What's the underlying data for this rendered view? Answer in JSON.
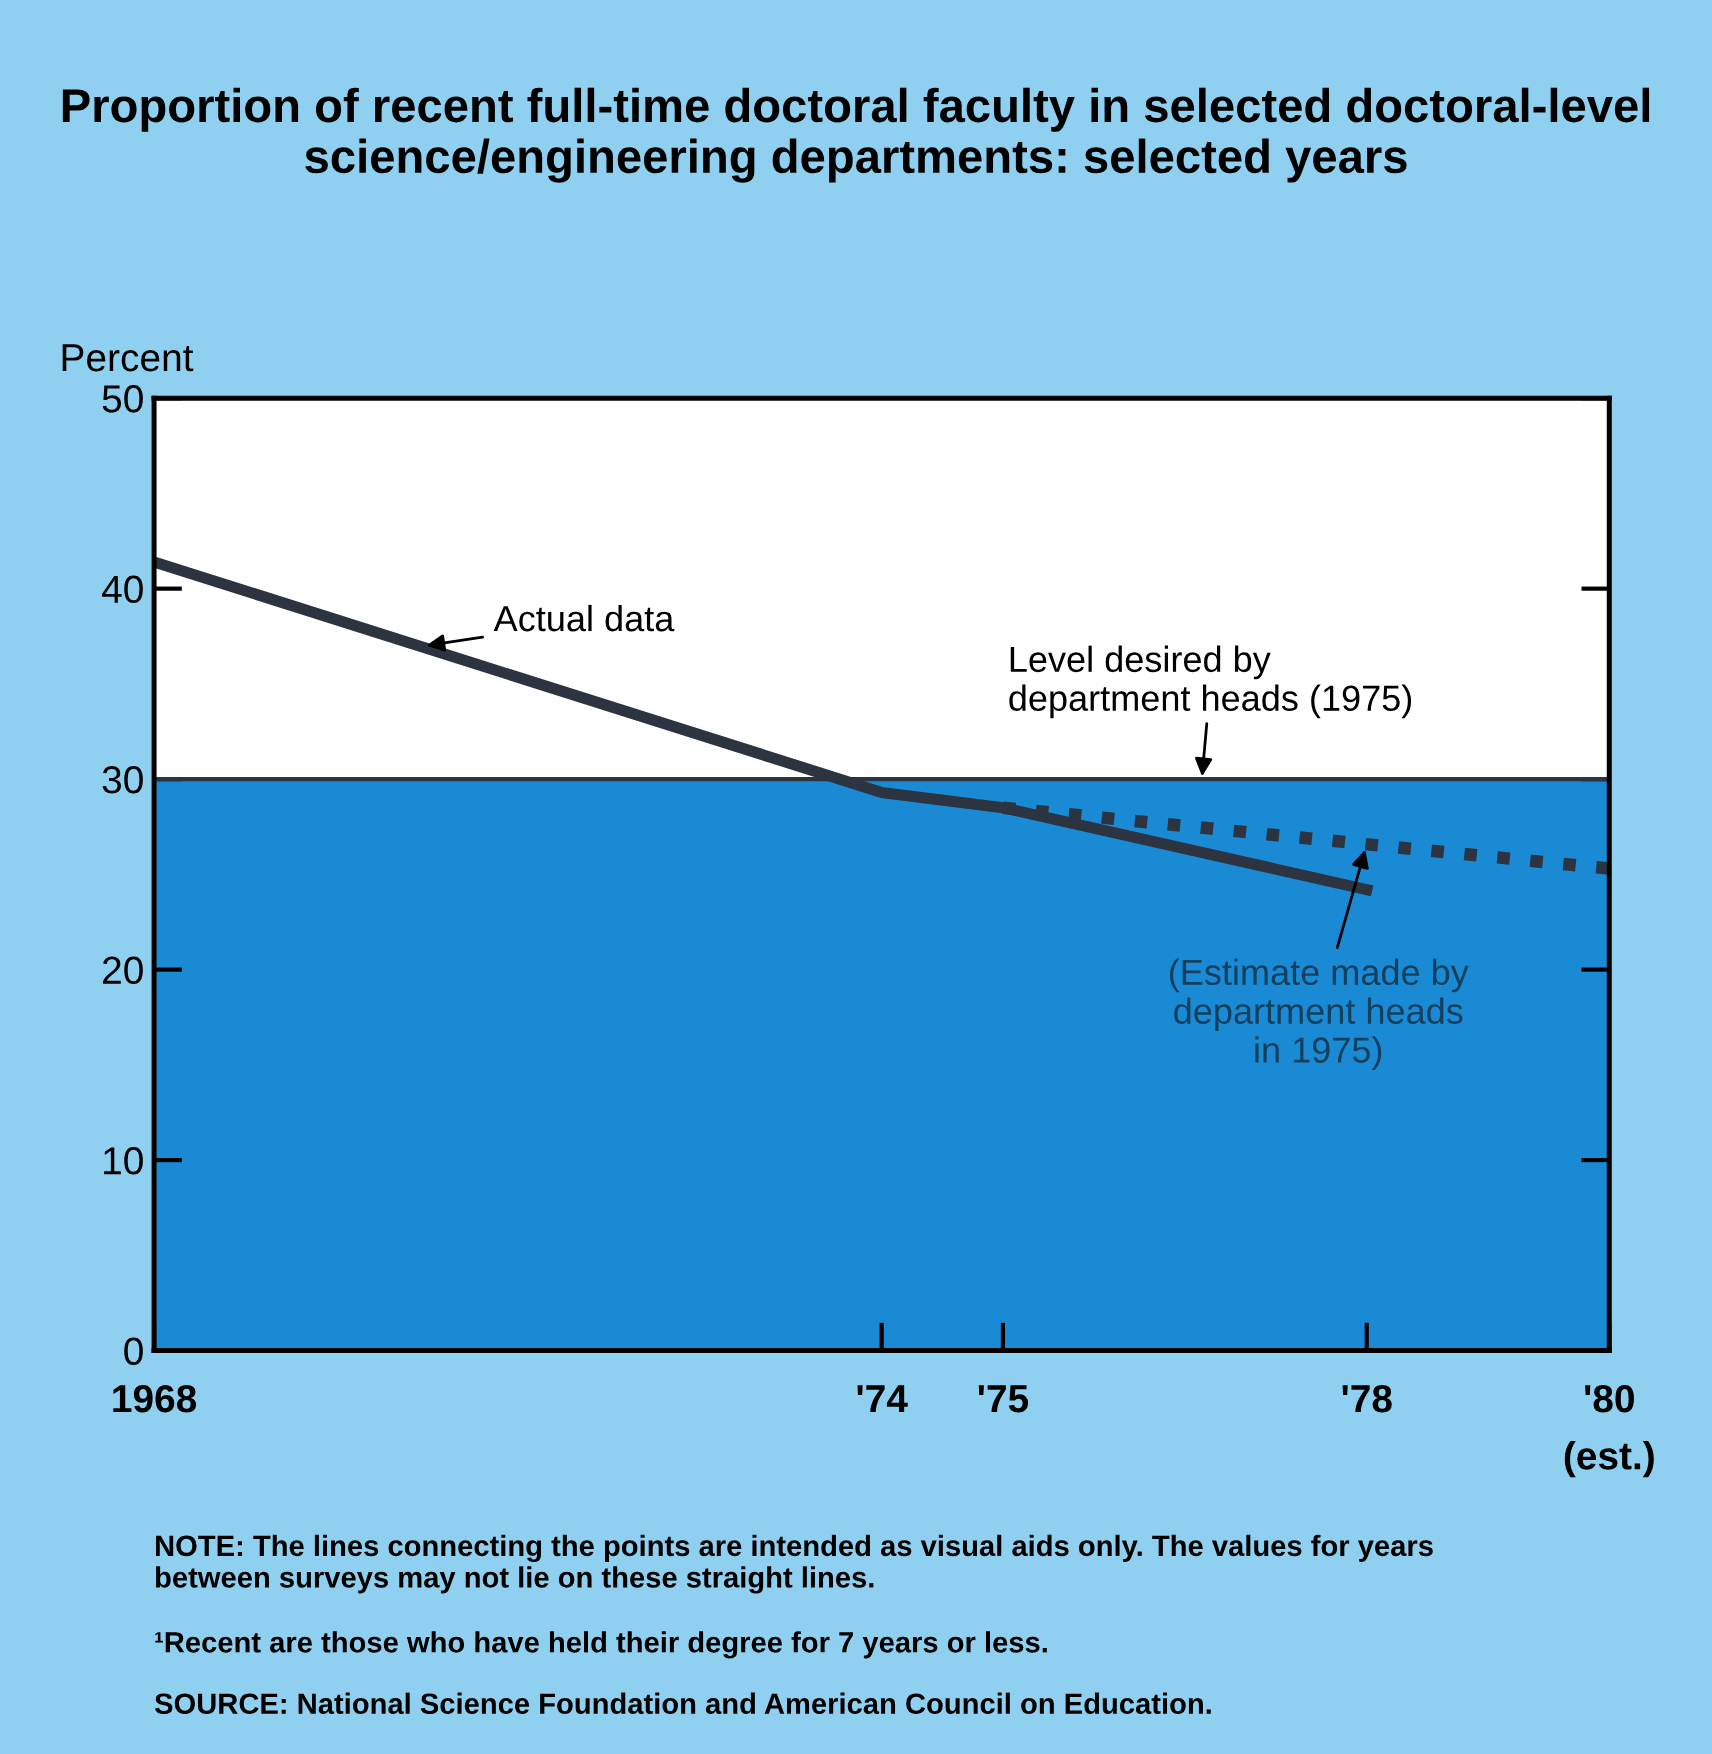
{
  "chart_data": {
    "type": "line",
    "title": "Proportion of recent full-time doctoral faculty in selected doctoral-level science/engineering departments: selected years",
    "ylabel": "Percent",
    "xlim": [
      1968,
      1980
    ],
    "xticks": [
      1968,
      {
        "value": 1974,
        "label": "'74"
      },
      {
        "value": 1975,
        "label": "'75"
      },
      {
        "value": 1978,
        "label": "'78"
      },
      {
        "value": 1980,
        "label": "'80"
      }
    ],
    "ylim": [
      0,
      50
    ],
    "yticks": [
      0,
      10,
      20,
      30,
      40,
      50
    ],
    "series": [
      {
        "name": "Actual data",
        "color": "#2b3440",
        "line_style": "solid",
        "x": [
          1968,
          1974,
          1975,
          1978
        ],
        "values": [
          41.4,
          29.3,
          28.5,
          24.2
        ]
      },
      {
        "name": "(Estimate made by\ndepartment heads\nin 1975)",
        "color": "#2b3440",
        "line_style": "dotted",
        "x": [
          1975,
          1980
        ],
        "values": [
          28.5,
          25.3
        ]
      }
    ],
    "bands": [
      {
        "axis": "y",
        "from": 0,
        "to": 30,
        "color": "#1a8ad4"
      }
    ],
    "ref_lines": [
      {
        "axis": "y",
        "value": 30,
        "label": "Level desired by\ndepartment heads (1975)",
        "color": "#2b3440",
        "line_style": "solid"
      }
    ],
    "grid": false,
    "legend": false,
    "annotations": [
      "(est.)",
      "NOTE: The lines connecting the points are intended as visual aids only. The values for years\nbetween surveys may not lie on these straight lines.",
      "¹Recent are those who have held their degree for 7 years or less.",
      "SOURCE: National Science Foundation and American Council on Education."
    ]
  }
}
